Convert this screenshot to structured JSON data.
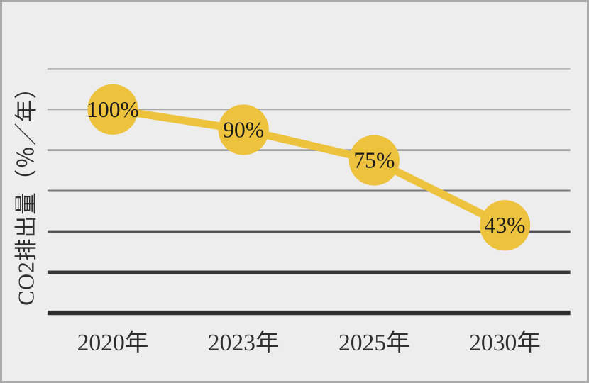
{
  "chart_data": {
    "type": "line",
    "categories": [
      "2020年",
      "2023年",
      "2025年",
      "2030年"
    ],
    "values": [
      100,
      90,
      75,
      43
    ],
    "point_labels": [
      "100%",
      "90%",
      "75%",
      "43%"
    ],
    "title": "",
    "xlabel": "",
    "ylabel": "CO2排出量（％／年）",
    "ylim": [
      0,
      120
    ],
    "gridline_values": [
      120,
      100,
      80,
      60,
      40,
      20
    ],
    "grid": true,
    "legend": false,
    "colors": {
      "background": "#ededed",
      "frame_border": "#a9a9a9",
      "line": "#edc23c",
      "marker": "#edc23c",
      "point_label_text": "#1c1c1c",
      "tick_label_text": "#2e2e2e",
      "ylabel_text": "#2e2e2e",
      "axis": "#2f2f2f",
      "gridlines": [
        "#b9b9b9",
        "#a8a8a8",
        "#969696",
        "#7c7c7c",
        "#545454",
        "#373737"
      ]
    }
  }
}
